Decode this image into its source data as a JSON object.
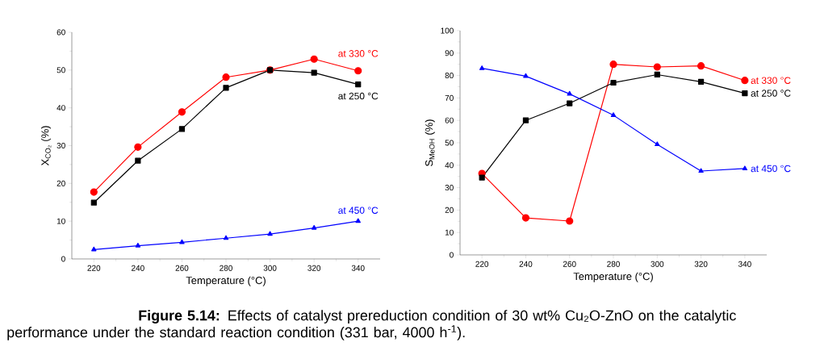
{
  "chart_data": [
    {
      "type": "line",
      "xlabel": "Temperature (°C)",
      "ylabel": "X$_{CO₂}$ (%)",
      "x": [
        220,
        240,
        260,
        280,
        300,
        320,
        340
      ],
      "xlim": [
        210,
        350
      ],
      "xticks": [
        220,
        240,
        260,
        280,
        300,
        320,
        340
      ],
      "ylim": [
        0,
        60
      ],
      "yticks": [
        0,
        10,
        20,
        30,
        40,
        50,
        60
      ],
      "series": [
        {
          "name": "at 330 °C",
          "color": "#ff0000",
          "marker": "circle",
          "values": [
            17.7,
            29.6,
            38.9,
            48.1,
            50.0,
            52.9,
            49.8
          ]
        },
        {
          "name": "at 250 °C",
          "color": "#000000",
          "marker": "square",
          "values": [
            14.9,
            26.0,
            34.4,
            45.3,
            50.0,
            49.3,
            46.2
          ]
        },
        {
          "name": "at 450 °C",
          "color": "#0000ff",
          "marker": "triangle",
          "values": [
            2.5,
            3.5,
            4.4,
            5.5,
            6.6,
            8.2,
            10.0
          ]
        }
      ],
      "annotations": [
        "**Figure 5.14:** Effects of catalyst prereduction condition of 30 wt% Cu₂O-ZnO on the catalytic performance under the standard reaction condition (331 bar, 4000 h$^{-1}$)."
      ]
    },
    {
      "type": "line",
      "xlabel": "Temperature (°C)",
      "ylabel": "S$_{MeOH}$ (%)",
      "x": [
        220,
        240,
        260,
        280,
        300,
        320,
        340
      ],
      "xlim": [
        210,
        350
      ],
      "xticks": [
        220,
        240,
        260,
        280,
        300,
        320,
        340
      ],
      "ylim": [
        0,
        100
      ],
      "yticks": [
        0,
        10,
        20,
        30,
        40,
        50,
        60,
        70,
        80,
        90,
        100
      ],
      "series": [
        {
          "name": "at 330 °C",
          "color": "#ff0000",
          "marker": "circle",
          "values": [
            36.3,
            16.5,
            15.1,
            85.0,
            83.8,
            84.3,
            77.8
          ]
        },
        {
          "name": "at 250 °C",
          "color": "#000000",
          "marker": "square",
          "values": [
            34.5,
            60.0,
            67.6,
            76.8,
            80.4,
            77.2,
            72.1
          ]
        },
        {
          "name": "at 450 °C",
          "color": "#0000ff",
          "marker": "triangle",
          "values": [
            83.2,
            79.7,
            71.8,
            62.3,
            49.3,
            37.4,
            38.5
          ]
        }
      ]
    }
  ]
}
